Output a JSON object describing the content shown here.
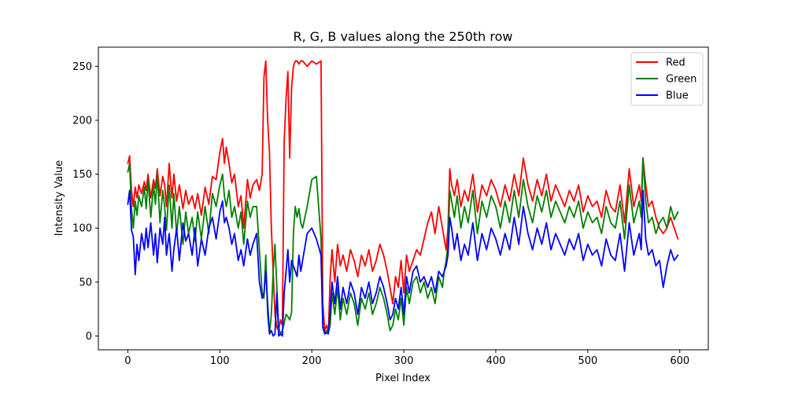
{
  "chart_data": {
    "type": "line",
    "title": "R, G, B values along the 250th row",
    "xlabel": "Pixel Index",
    "ylabel": "Intensity Value",
    "xlim": [
      -32,
      631
    ],
    "ylim": [
      -12.75,
      267.75
    ],
    "xticks": [
      0,
      100,
      200,
      300,
      400,
      500,
      600
    ],
    "yticks": [
      0,
      50,
      100,
      150,
      200,
      250
    ],
    "grid": false,
    "legend_position": "top-right",
    "series": [
      {
        "name": "Red",
        "color": "#ff0000",
        "x": [
          0,
          2,
          4,
          6,
          8,
          10,
          12,
          15,
          18,
          20,
          22,
          25,
          28,
          30,
          32,
          35,
          38,
          40,
          42,
          45,
          48,
          50,
          53,
          56,
          60,
          63,
          66,
          70,
          73,
          76,
          80,
          84,
          88,
          92,
          96,
          100,
          103,
          105,
          107,
          110,
          113,
          116,
          120,
          123,
          126,
          130,
          133,
          136,
          140,
          143,
          146,
          148,
          150,
          152,
          154,
          156,
          158,
          160,
          162,
          164,
          166,
          168,
          170,
          172,
          174,
          176,
          178,
          180,
          182,
          184,
          186,
          188,
          190,
          195,
          200,
          205,
          210,
          212,
          214,
          216,
          218,
          220,
          222,
          225,
          228,
          231,
          234,
          238,
          242,
          246,
          250,
          254,
          258,
          262,
          266,
          270,
          274,
          278,
          282,
          285,
          288,
          291,
          294,
          297,
          300,
          303,
          306,
          310,
          314,
          318,
          322,
          326,
          330,
          334,
          338,
          342,
          344,
          346,
          348,
          350,
          352,
          355,
          358,
          362,
          366,
          370,
          375,
          380,
          385,
          390,
          395,
          400,
          405,
          410,
          415,
          420,
          425,
          430,
          435,
          440,
          445,
          450,
          455,
          460,
          465,
          470,
          475,
          480,
          485,
          490,
          495,
          500,
          505,
          510,
          515,
          520,
          525,
          530,
          535,
          540,
          545,
          550,
          553,
          556,
          558,
          560,
          563,
          566,
          570,
          574,
          578,
          582,
          586,
          590,
          594,
          598
        ],
        "values": [
          160,
          167,
          135,
          120,
          138,
          128,
          140,
          132,
          143,
          135,
          150,
          128,
          145,
          137,
          155,
          130,
          148,
          140,
          120,
          160,
          128,
          150,
          125,
          140,
          118,
          135,
          122,
          130,
          118,
          132,
          112,
          138,
          122,
          148,
          145,
          170,
          183,
          160,
          175,
          160,
          142,
          150,
          120,
          130,
          100,
          145,
          128,
          140,
          145,
          135,
          150,
          240,
          255,
          200,
          170,
          100,
          60,
          20,
          8,
          5,
          15,
          10,
          180,
          220,
          245,
          165,
          230,
          250,
          255,
          255,
          252,
          255,
          255,
          250,
          255,
          252,
          255,
          30,
          5,
          10,
          3,
          55,
          80,
          50,
          85,
          65,
          75,
          60,
          80,
          70,
          55,
          75,
          65,
          80,
          60,
          70,
          85,
          75,
          60,
          45,
          30,
          55,
          45,
          70,
          40,
          75,
          60,
          70,
          80,
          75,
          90,
          105,
          115,
          95,
          120,
          100,
          90,
          80,
          100,
          155,
          140,
          130,
          145,
          120,
          135,
          125,
          150,
          115,
          140,
          130,
          145,
          135,
          120,
          140,
          125,
          150,
          130,
          165,
          140,
          125,
          145,
          130,
          150,
          125,
          140,
          130,
          120,
          135,
          125,
          140,
          115,
          130,
          120,
          125,
          110,
          135,
          120,
          115,
          140,
          105,
          155,
          120,
          130,
          140,
          125,
          165,
          140,
          120,
          125,
          110,
          100,
          95,
          100,
          110,
          100,
          90
        ],
        "values_note": ""
      },
      {
        "name": "Green",
        "color": "#008000",
        "x": [
          0,
          2,
          4,
          6,
          8,
          10,
          12,
          15,
          18,
          20,
          22,
          25,
          28,
          30,
          32,
          35,
          38,
          40,
          42,
          45,
          48,
          50,
          53,
          56,
          60,
          63,
          66,
          70,
          73,
          76,
          80,
          84,
          88,
          92,
          96,
          100,
          103,
          105,
          107,
          110,
          113,
          116,
          120,
          123,
          126,
          130,
          133,
          136,
          140,
          143,
          146,
          148,
          150,
          152,
          154,
          156,
          158,
          160,
          162,
          164,
          166,
          168,
          170,
          172,
          174,
          176,
          178,
          180,
          182,
          184,
          186,
          188,
          190,
          195,
          200,
          205,
          210,
          212,
          214,
          216,
          218,
          220,
          222,
          225,
          228,
          231,
          234,
          238,
          242,
          246,
          250,
          254,
          258,
          262,
          266,
          270,
          274,
          278,
          282,
          285,
          288,
          291,
          294,
          297,
          300,
          303,
          306,
          310,
          314,
          318,
          322,
          326,
          330,
          334,
          338,
          342,
          344,
          346,
          348,
          350,
          352,
          355,
          358,
          362,
          366,
          370,
          375,
          380,
          385,
          390,
          395,
          400,
          405,
          410,
          415,
          420,
          425,
          430,
          435,
          440,
          445,
          450,
          455,
          460,
          465,
          470,
          475,
          480,
          485,
          490,
          495,
          500,
          505,
          510,
          515,
          520,
          525,
          530,
          535,
          540,
          545,
          550,
          553,
          556,
          558,
          560,
          563,
          566,
          570,
          574,
          578,
          582,
          586,
          590,
          594,
          598
        ],
        "values": [
          152,
          160,
          118,
          100,
          125,
          112,
          130,
          120,
          138,
          118,
          145,
          110,
          140,
          122,
          150,
          105,
          135,
          120,
          98,
          140,
          100,
          132,
          95,
          120,
          85,
          115,
          95,
          110,
          88,
          115,
          90,
          120,
          95,
          132,
          120,
          140,
          150,
          130,
          120,
          135,
          110,
          120,
          100,
          115,
          85,
          125,
          110,
          120,
          120,
          80,
          40,
          35,
          75,
          20,
          2,
          20,
          60,
          85,
          45,
          8,
          2,
          5,
          12,
          20,
          18,
          15,
          22,
          95,
          120,
          110,
          118,
          105,
          100,
          120,
          145,
          148,
          90,
          10,
          3,
          5,
          3,
          10,
          40,
          20,
          45,
          15,
          35,
          20,
          40,
          30,
          10,
          35,
          25,
          40,
          20,
          30,
          45,
          35,
          20,
          5,
          10,
          25,
          15,
          35,
          10,
          45,
          30,
          50,
          55,
          40,
          50,
          35,
          45,
          30,
          55,
          45,
          60,
          70,
          85,
          135,
          125,
          110,
          130,
          100,
          120,
          105,
          135,
          95,
          125,
          110,
          130,
          120,
          100,
          125,
          105,
          135,
          110,
          145,
          120,
          105,
          130,
          115,
          135,
          110,
          125,
          115,
          105,
          120,
          110,
          125,
          100,
          115,
          105,
          110,
          95,
          120,
          105,
          100,
          125,
          90,
          140,
          105,
          115,
          125,
          110,
          165,
          125,
          105,
          110,
          95,
          105,
          110,
          100,
          120,
          108,
          115
        ],
        "values_note": ""
      },
      {
        "name": "Blue",
        "color": "#0000ff",
        "x": [
          0,
          2,
          4,
          6,
          8,
          10,
          12,
          15,
          18,
          20,
          22,
          25,
          28,
          30,
          32,
          35,
          38,
          40,
          42,
          45,
          48,
          50,
          53,
          56,
          60,
          63,
          66,
          70,
          73,
          76,
          80,
          84,
          88,
          92,
          96,
          100,
          103,
          105,
          107,
          110,
          113,
          116,
          120,
          123,
          126,
          130,
          133,
          136,
          140,
          143,
          146,
          148,
          150,
          152,
          154,
          156,
          158,
          160,
          162,
          164,
          166,
          168,
          170,
          172,
          174,
          176,
          178,
          180,
          182,
          184,
          186,
          188,
          190,
          195,
          200,
          205,
          210,
          212,
          214,
          216,
          218,
          220,
          222,
          225,
          228,
          231,
          234,
          238,
          242,
          246,
          250,
          254,
          258,
          262,
          266,
          270,
          274,
          278,
          282,
          285,
          288,
          291,
          294,
          297,
          300,
          303,
          306,
          310,
          314,
          318,
          322,
          326,
          330,
          334,
          338,
          342,
          344,
          346,
          348,
          350,
          352,
          355,
          358,
          362,
          366,
          370,
          375,
          380,
          385,
          390,
          395,
          400,
          405,
          410,
          415,
          420,
          425,
          430,
          435,
          440,
          445,
          450,
          455,
          460,
          465,
          470,
          475,
          480,
          485,
          490,
          495,
          500,
          505,
          510,
          515,
          520,
          525,
          530,
          535,
          540,
          545,
          550,
          553,
          556,
          558,
          560,
          563,
          566,
          570,
          574,
          578,
          582,
          586,
          590,
          594,
          598
        ],
        "values": [
          122,
          135,
          98,
          92,
          57,
          85,
          70,
          95,
          80,
          100,
          82,
          105,
          75,
          95,
          68,
          100,
          85,
          110,
          75,
          95,
          60,
          80,
          100,
          70,
          105,
          88,
          95,
          75,
          100,
          65,
          90,
          75,
          100,
          110,
          90,
          115,
          125,
          105,
          110,
          100,
          85,
          95,
          70,
          80,
          65,
          90,
          75,
          85,
          95,
          50,
          35,
          40,
          60,
          30,
          2,
          5,
          0,
          2,
          40,
          0,
          2,
          0,
          40,
          60,
          80,
          50,
          70,
          65,
          60,
          55,
          75,
          60,
          70,
          95,
          100,
          90,
          75,
          8,
          2,
          3,
          2,
          25,
          50,
          30,
          55,
          25,
          45,
          30,
          50,
          40,
          20,
          45,
          35,
          50,
          30,
          40,
          55,
          45,
          30,
          15,
          20,
          35,
          25,
          45,
          20,
          55,
          40,
          60,
          65,
          50,
          55,
          45,
          55,
          40,
          60,
          55,
          60,
          65,
          75,
          110,
          100,
          80,
          95,
          70,
          85,
          75,
          105,
          70,
          95,
          80,
          100,
          90,
          75,
          95,
          80,
          110,
          85,
          120,
          95,
          80,
          100,
          85,
          105,
          80,
          95,
          85,
          75,
          90,
          80,
          95,
          70,
          85,
          75,
          80,
          65,
          90,
          75,
          70,
          95,
          60,
          105,
          75,
          85,
          95,
          80,
          135,
          90,
          75,
          80,
          65,
          70,
          45,
          65,
          80,
          70,
          75
        ],
        "values_note": ""
      }
    ]
  }
}
